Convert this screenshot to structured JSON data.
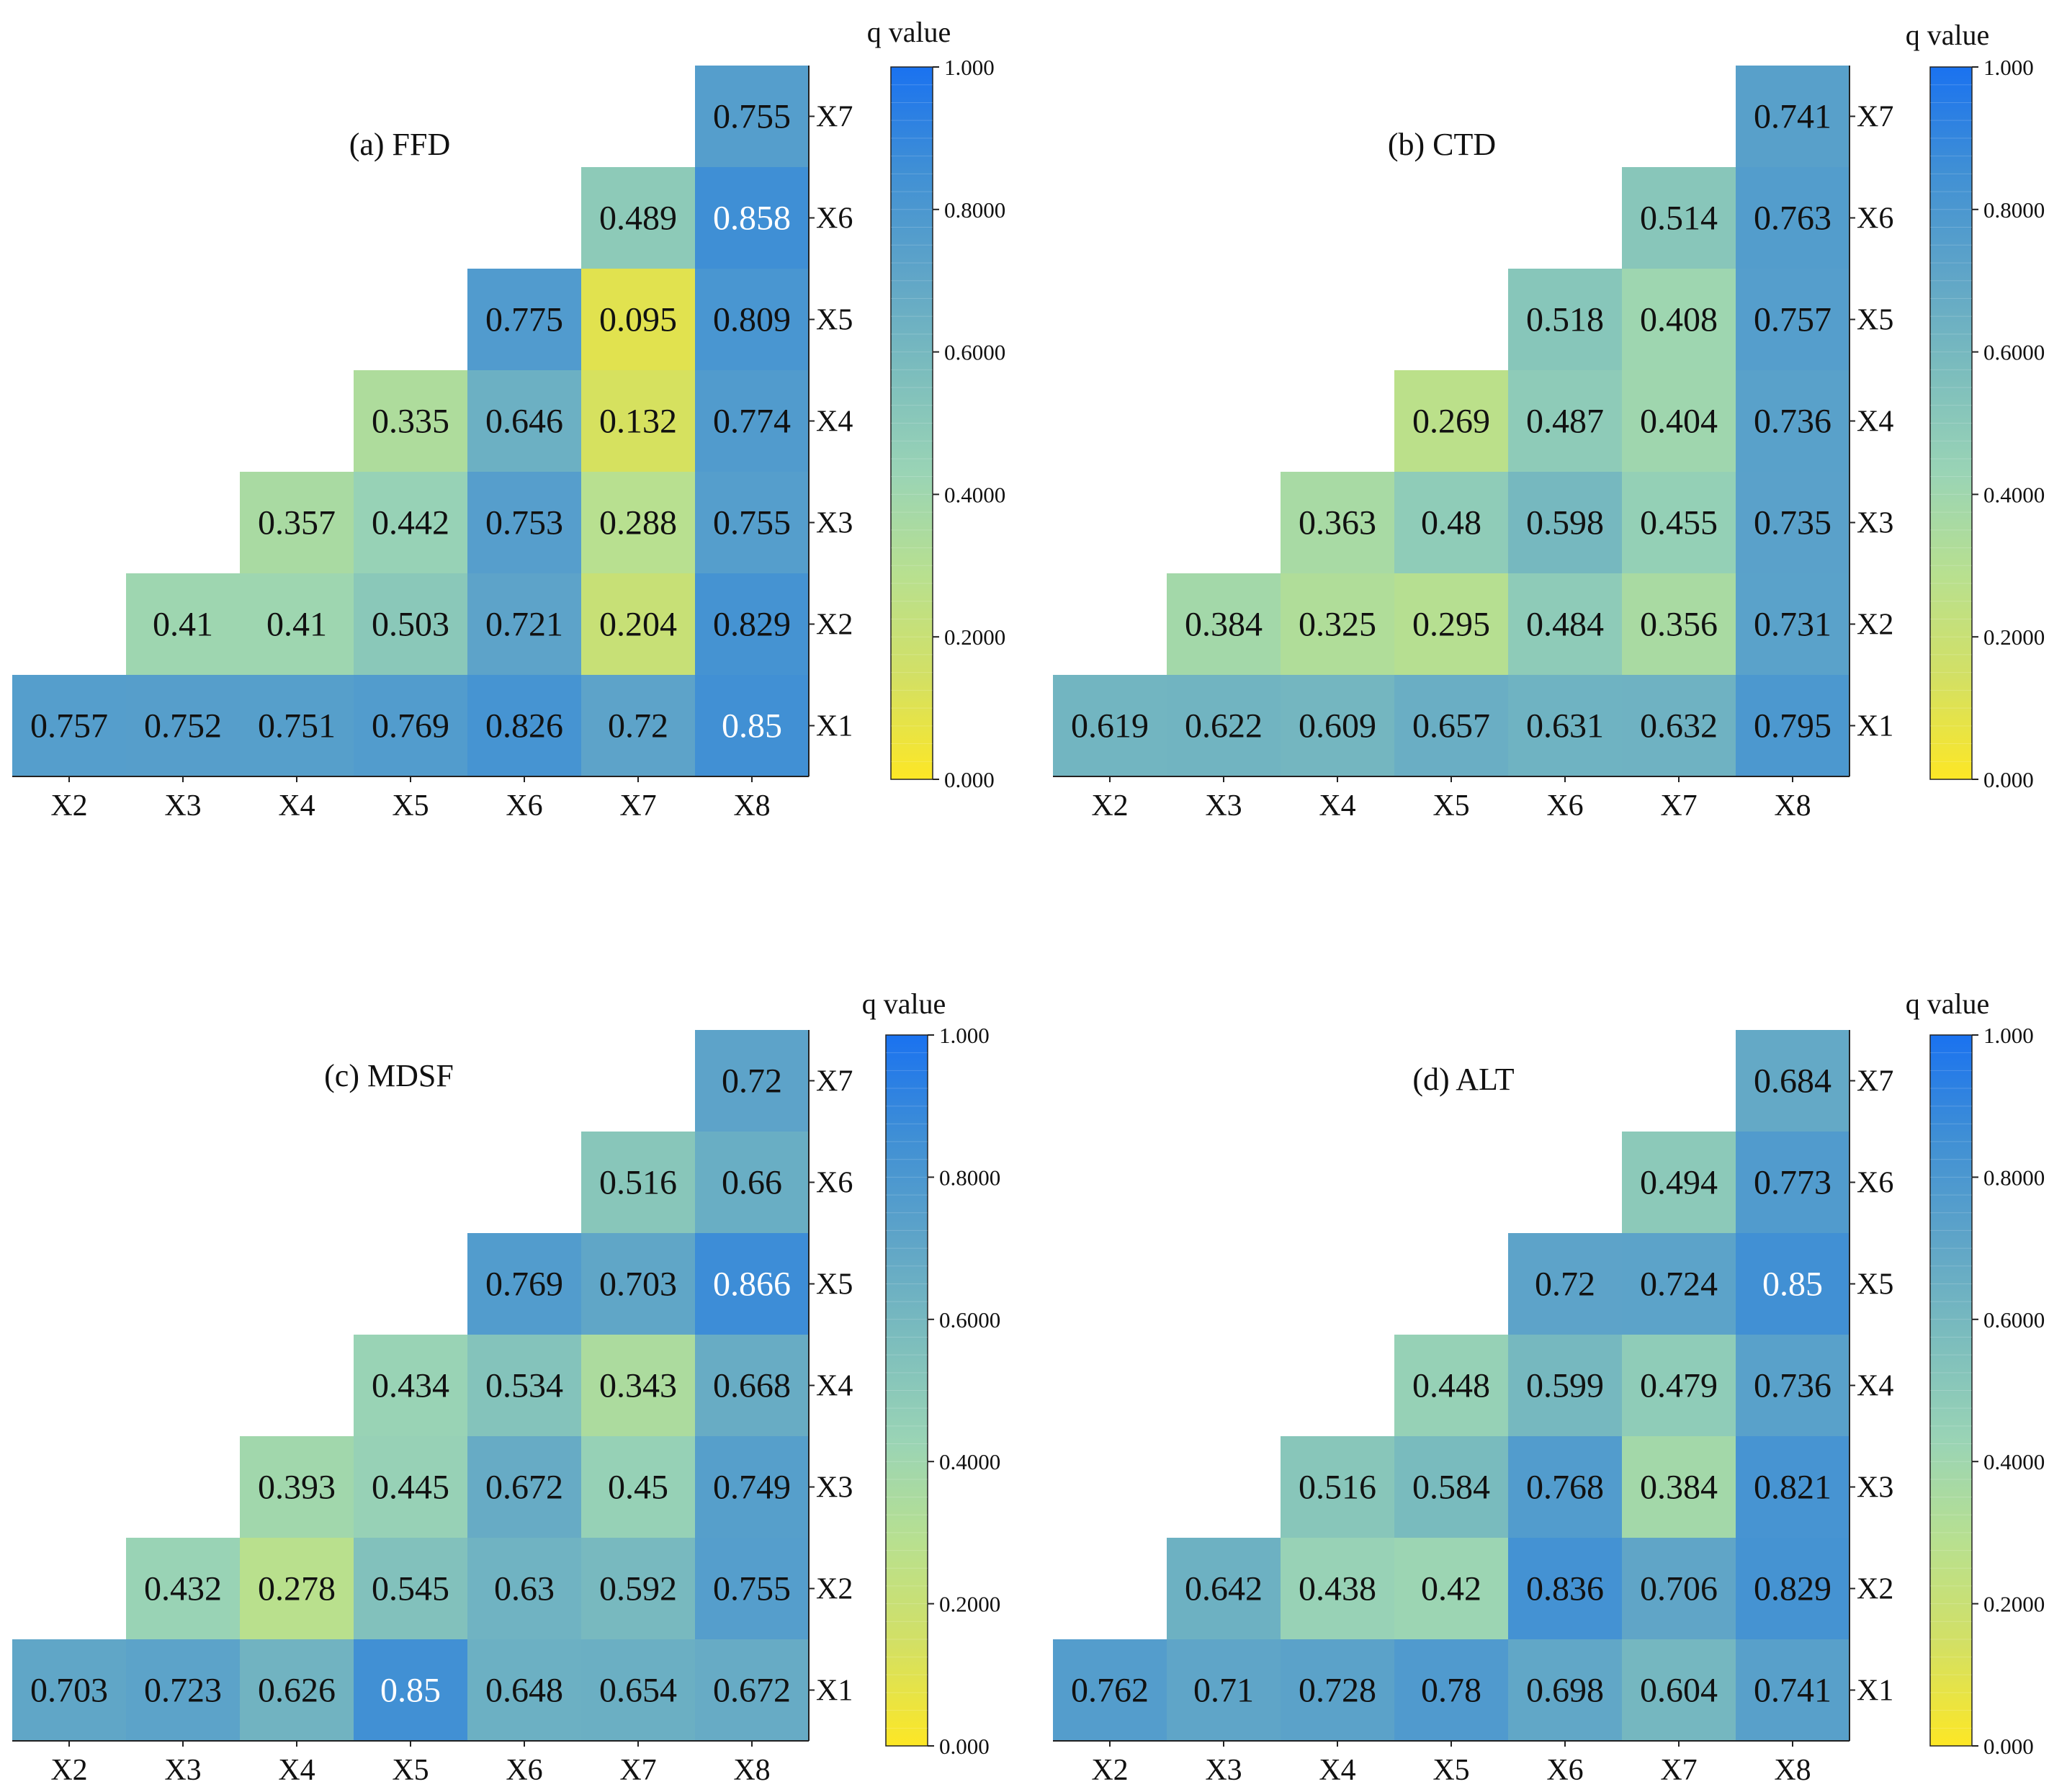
{
  "colorbar_stops": [
    "#fde725",
    "#d3e064",
    "#b8e08f",
    "#9ad4b5",
    "#7cbdbd",
    "#5ea4c8",
    "#3f8fd5",
    "#1a72f0"
  ],
  "chart_data": [
    {
      "type": "heatmap",
      "title": "(a) FFD",
      "x_labels": [
        "X2",
        "X3",
        "X4",
        "X5",
        "X6",
        "X7",
        "X8"
      ],
      "y_labels": [
        "X7",
        "X6",
        "X5",
        "X4",
        "X3",
        "X2",
        "X1"
      ],
      "colorbar": {
        "label": "q value",
        "range": [
          0,
          1
        ],
        "tick_labels": [
          "0.000",
          "0.2000",
          "0.4000",
          "0.6000",
          "0.8000",
          "1.000"
        ]
      },
      "matrix": [
        [
          null,
          null,
          null,
          null,
          null,
          null,
          "0.755"
        ],
        [
          null,
          null,
          null,
          null,
          null,
          "0.489",
          "0.858"
        ],
        [
          null,
          null,
          null,
          null,
          "0.775",
          "0.095",
          "0.809"
        ],
        [
          null,
          null,
          null,
          "0.335",
          "0.646",
          "0.132",
          "0.774"
        ],
        [
          null,
          null,
          "0.357",
          "0.442",
          "0.753",
          "0.288",
          "0.755"
        ],
        [
          null,
          "0.41",
          "0.41",
          "0.503",
          "0.721",
          "0.204",
          "0.829"
        ],
        [
          "0.757",
          "0.752",
          "0.751",
          "0.769",
          "0.826",
          "0.72",
          "0.85"
        ]
      ]
    },
    {
      "type": "heatmap",
      "title": "(b) CTD",
      "x_labels": [
        "X2",
        "X3",
        "X4",
        "X5",
        "X6",
        "X7",
        "X8"
      ],
      "y_labels": [
        "X7",
        "X6",
        "X5",
        "X4",
        "X3",
        "X2",
        "X1"
      ],
      "colorbar": {
        "label": "q value",
        "range": [
          0,
          1
        ],
        "tick_labels": [
          "0.000",
          "0.2000",
          "0.4000",
          "0.6000",
          "0.8000",
          "1.000"
        ]
      },
      "matrix": [
        [
          null,
          null,
          null,
          null,
          null,
          null,
          "0.741"
        ],
        [
          null,
          null,
          null,
          null,
          null,
          "0.514",
          "0.763"
        ],
        [
          null,
          null,
          null,
          null,
          "0.518",
          "0.408",
          "0.757"
        ],
        [
          null,
          null,
          null,
          "0.269",
          "0.487",
          "0.404",
          "0.736"
        ],
        [
          null,
          null,
          "0.363",
          "0.48",
          "0.598",
          "0.455",
          "0.735"
        ],
        [
          null,
          "0.384",
          "0.325",
          "0.295",
          "0.484",
          "0.356",
          "0.731"
        ],
        [
          "0.619",
          "0.622",
          "0.609",
          "0.657",
          "0.631",
          "0.632",
          "0.795"
        ]
      ]
    },
    {
      "type": "heatmap",
      "title": "(c) MDSF",
      "x_labels": [
        "X2",
        "X3",
        "X4",
        "X5",
        "X6",
        "X7",
        "X8"
      ],
      "y_labels": [
        "X7",
        "X6",
        "X5",
        "X4",
        "X3",
        "X2",
        "X1"
      ],
      "colorbar": {
        "label": "q value",
        "range": [
          0,
          1
        ],
        "tick_labels": [
          "0.000",
          "0.2000",
          "0.4000",
          "0.6000",
          "0.8000",
          "1.000"
        ]
      },
      "matrix": [
        [
          null,
          null,
          null,
          null,
          null,
          null,
          "0.72"
        ],
        [
          null,
          null,
          null,
          null,
          null,
          "0.516",
          "0.66"
        ],
        [
          null,
          null,
          null,
          null,
          "0.769",
          "0.703",
          "0.866"
        ],
        [
          null,
          null,
          null,
          "0.434",
          "0.534",
          "0.343",
          "0.668"
        ],
        [
          null,
          null,
          "0.393",
          "0.445",
          "0.672",
          "0.45",
          "0.749"
        ],
        [
          null,
          "0.432",
          "0.278",
          "0.545",
          "0.63",
          "0.592",
          "0.755"
        ],
        [
          "0.703",
          "0.723",
          "0.626",
          "0.85",
          "0.648",
          "0.654",
          "0.672"
        ]
      ]
    },
    {
      "type": "heatmap",
      "title": "(d) ALT",
      "x_labels": [
        "X2",
        "X3",
        "X4",
        "X5",
        "X6",
        "X7",
        "X8"
      ],
      "y_labels": [
        "X7",
        "X6",
        "X5",
        "X4",
        "X3",
        "X2",
        "X1"
      ],
      "colorbar": {
        "label": "q value",
        "range": [
          0,
          1
        ],
        "tick_labels": [
          "0.000",
          "0.2000",
          "0.4000",
          "0.6000",
          "0.8000",
          "1.000"
        ]
      },
      "matrix": [
        [
          null,
          null,
          null,
          null,
          null,
          null,
          "0.684"
        ],
        [
          null,
          null,
          null,
          null,
          null,
          "0.494",
          "0.773"
        ],
        [
          null,
          null,
          null,
          null,
          "0.72",
          "0.724",
          "0.85"
        ],
        [
          null,
          null,
          null,
          "0.448",
          "0.599",
          "0.479",
          "0.736"
        ],
        [
          null,
          null,
          "0.516",
          "0.584",
          "0.768",
          "0.384",
          "0.821"
        ],
        [
          null,
          "0.642",
          "0.438",
          "0.42",
          "0.836",
          "0.706",
          "0.829"
        ],
        [
          "0.762",
          "0.71",
          "0.728",
          "0.78",
          "0.698",
          "0.604",
          "0.741"
        ]
      ]
    }
  ]
}
